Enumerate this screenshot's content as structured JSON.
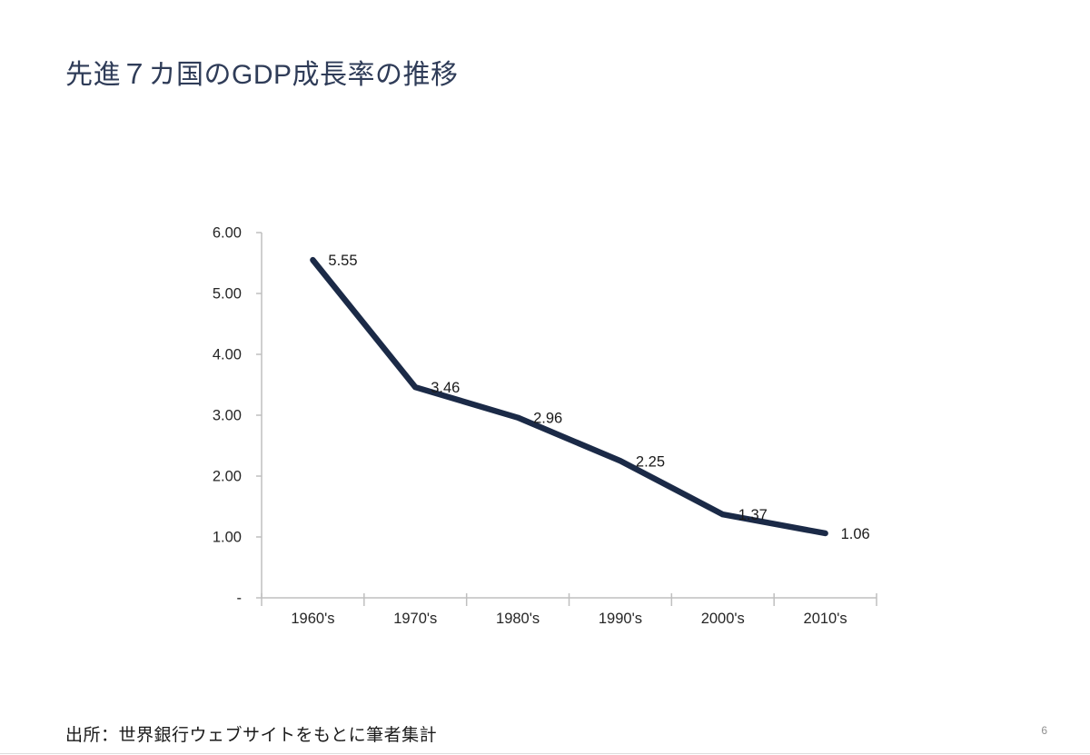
{
  "page": {
    "title": "先進７カ国のGDP成長率の推移",
    "source": "出所：世界銀行ウェブサイトをもとに筆者集計",
    "page_number": "6"
  },
  "colors": {
    "series_line": "#1B2A47",
    "title_text": "#2F3C58",
    "axis": "#BFBFBF",
    "tick_label": "#262626",
    "data_label": "#1A1A1A",
    "page_number": "#909090"
  },
  "chart_data": {
    "type": "line",
    "title": "先進７カ国のGDP成長率の推移",
    "xlabel": "",
    "ylabel": "",
    "categories": [
      "1960's",
      "1970's",
      "1980's",
      "1990's",
      "2000's",
      "2010's"
    ],
    "values": [
      5.55,
      3.46,
      2.96,
      2.25,
      1.37,
      1.06
    ],
    "data_labels": [
      "5.55",
      "3.46",
      "2.96",
      "2.25",
      "1.37",
      "1.06"
    ],
    "y_ticks": [
      {
        "value": 6,
        "label": "6.00"
      },
      {
        "value": 5,
        "label": "5.00"
      },
      {
        "value": 4,
        "label": "4.00"
      },
      {
        "value": 3,
        "label": "3.00"
      },
      {
        "value": 2,
        "label": "2.00"
      },
      {
        "value": 1,
        "label": "1.00"
      },
      {
        "value": 0,
        "label": "-"
      }
    ],
    "ylim": [
      0,
      6
    ],
    "grid": false,
    "legend": false,
    "line_width": 6.5,
    "markers": false,
    "data_label_position": "right"
  }
}
